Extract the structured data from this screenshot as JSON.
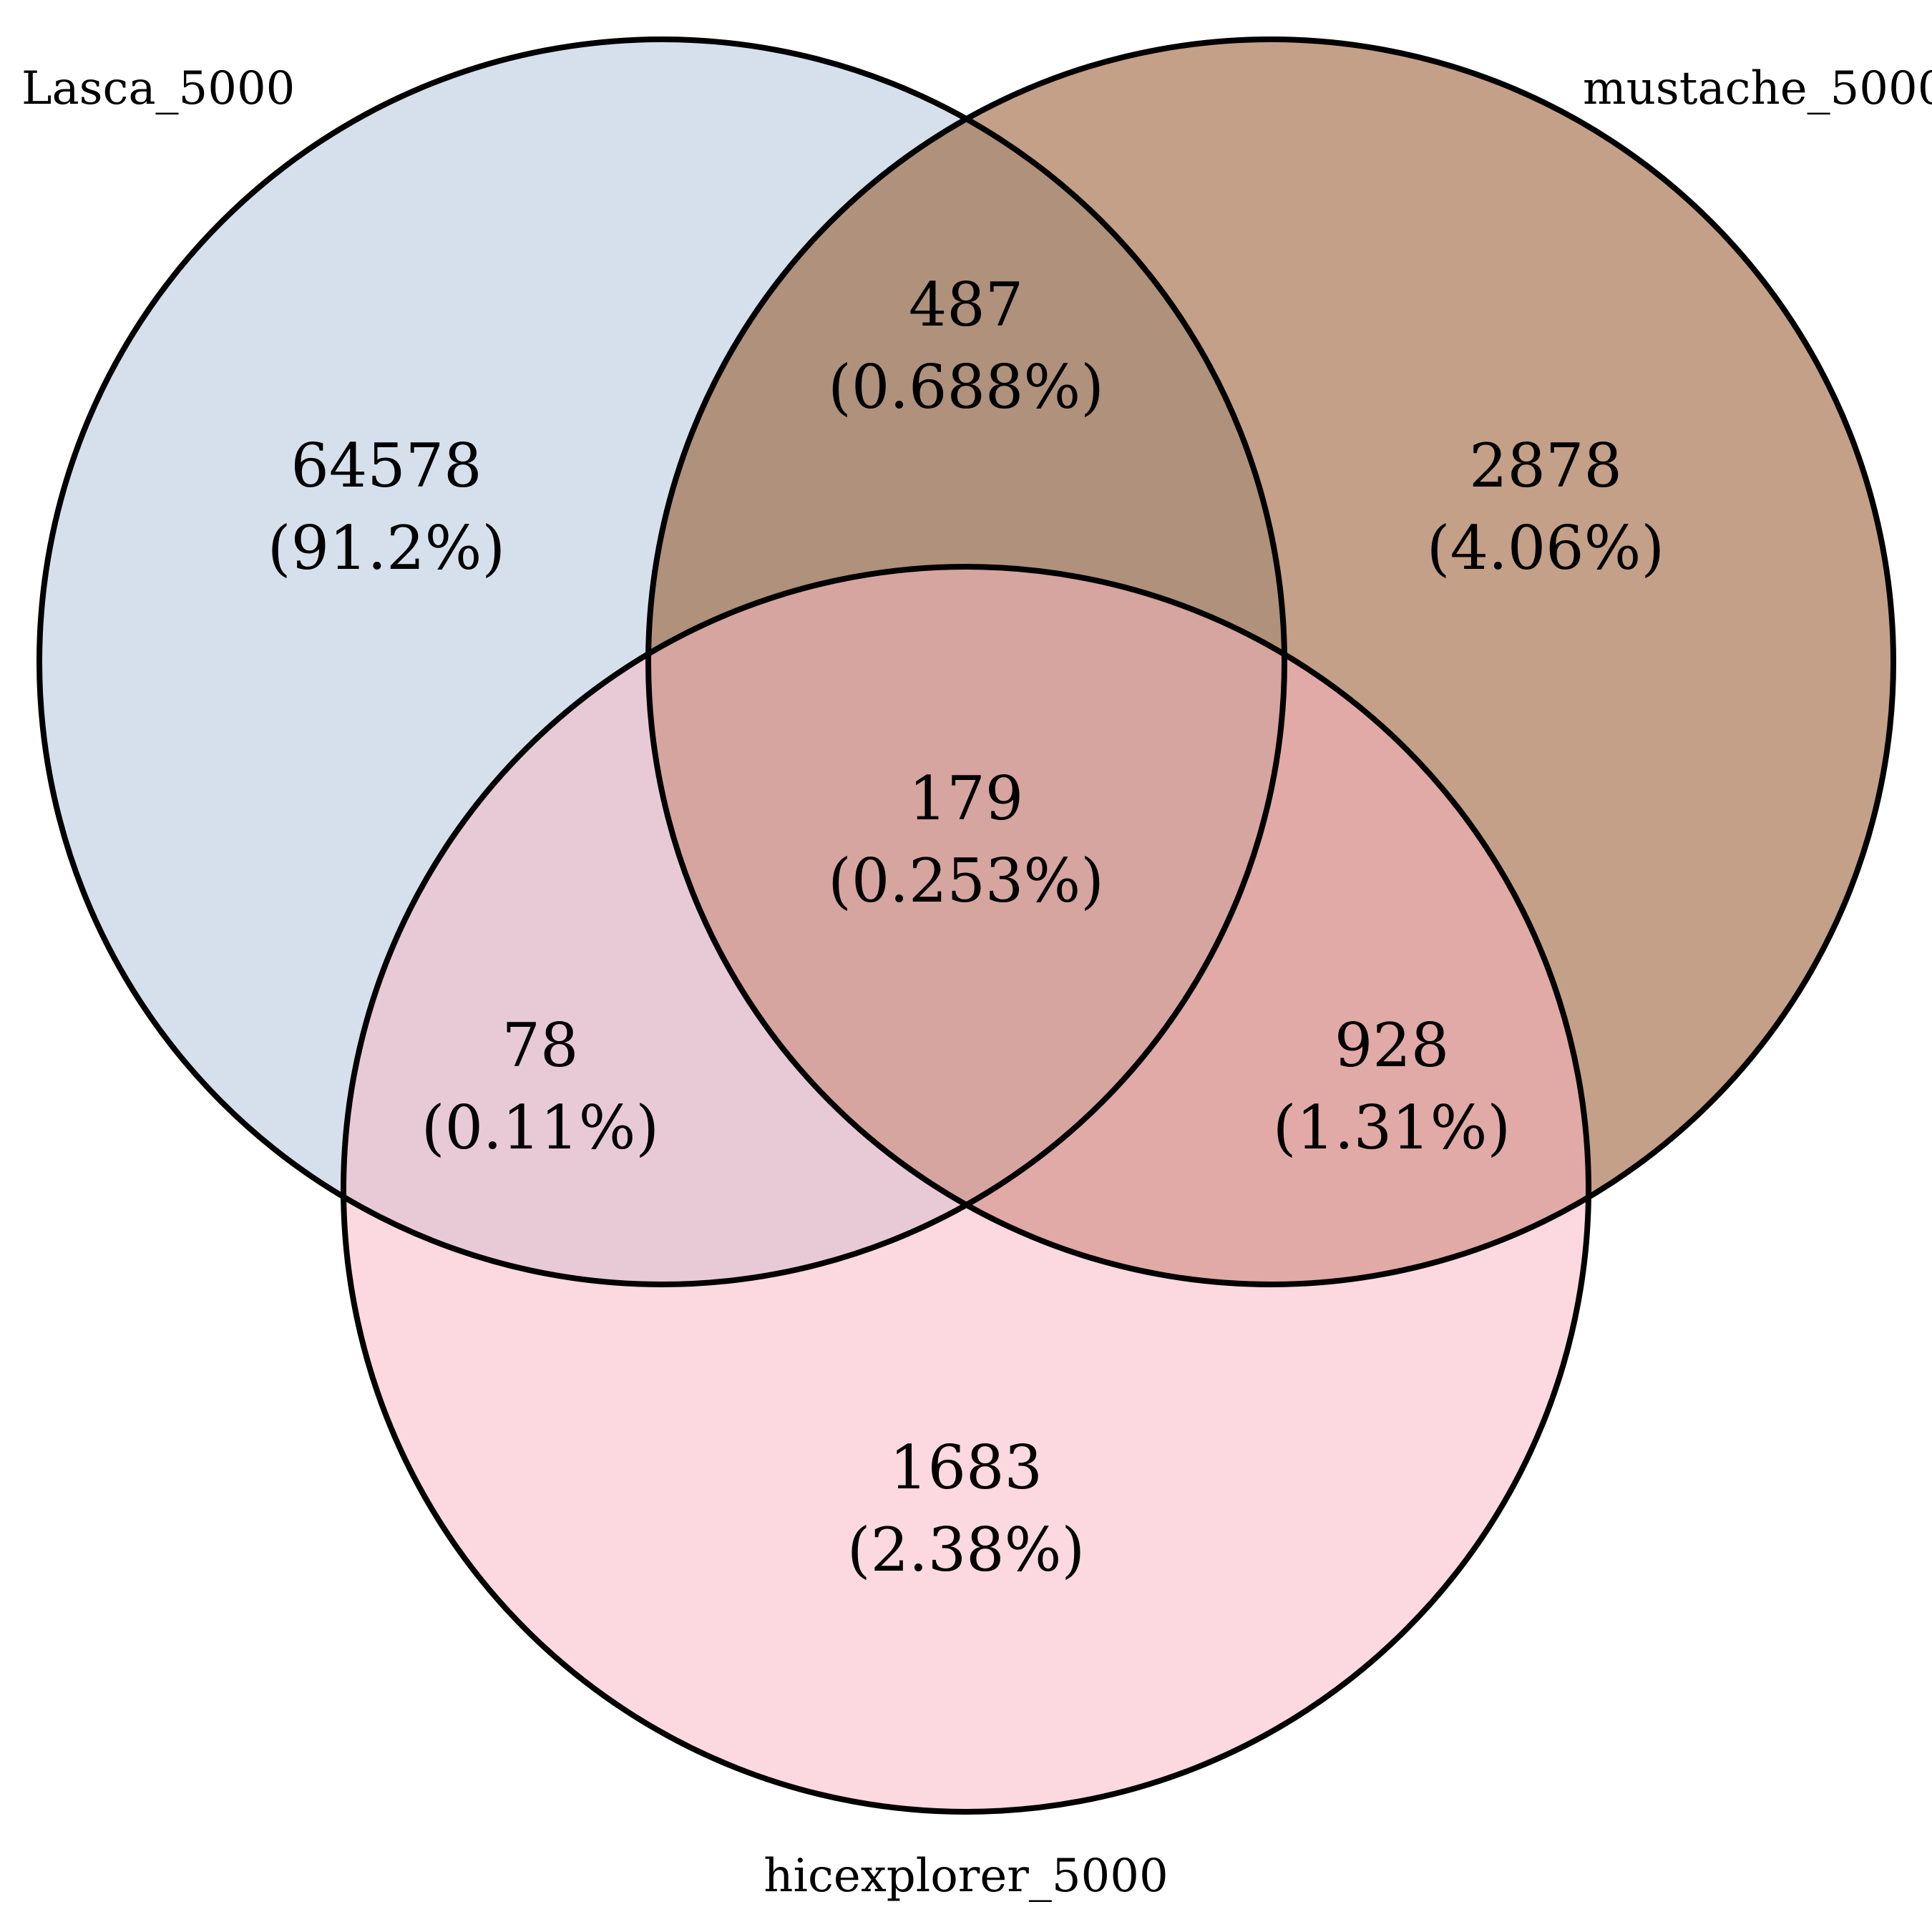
{
  "sets": {
    "A": {
      "label": "Lasca_5000",
      "color": "#d6e0ec"
    },
    "B": {
      "label": "mustache_5000",
      "color": "#c4a088"
    },
    "C": {
      "label": "hicexplorer_5000",
      "color": "#fcd8e0"
    }
  },
  "regions": {
    "A_only": {
      "count": "64578",
      "percent": "(91.2%)",
      "color": "#d6e0ec"
    },
    "B_only": {
      "count": "2878",
      "percent": "(4.06%)",
      "color": "#c4a088"
    },
    "C_only": {
      "count": "1683",
      "percent": "(2.38%)",
      "color": "#fcd8e0"
    },
    "AB": {
      "count": "487",
      "percent": "(0.688%)",
      "color": "#af917c"
    },
    "AC": {
      "count": "78",
      "percent": "(0.11%)",
      "color": "#e8cad6"
    },
    "BC": {
      "count": "928",
      "percent": "(1.31%)",
      "color": "#e1aaa6"
    },
    "ABC": {
      "count": "179",
      "percent": "(0.253%)",
      "color": "#d6a59f"
    }
  },
  "chart_data": {
    "type": "venn",
    "sets": [
      "Lasca_5000",
      "mustache_5000",
      "hicexplorer_5000"
    ],
    "regions": [
      {
        "sets": [
          "Lasca_5000"
        ],
        "value": 64578,
        "percent": 91.2
      },
      {
        "sets": [
          "mustache_5000"
        ],
        "value": 2878,
        "percent": 4.06
      },
      {
        "sets": [
          "hicexplorer_5000"
        ],
        "value": 1683,
        "percent": 2.38
      },
      {
        "sets": [
          "Lasca_5000",
          "mustache_5000"
        ],
        "value": 487,
        "percent": 0.688
      },
      {
        "sets": [
          "Lasca_5000",
          "hicexplorer_5000"
        ],
        "value": 78,
        "percent": 0.11
      },
      {
        "sets": [
          "mustache_5000",
          "hicexplorer_5000"
        ],
        "value": 928,
        "percent": 1.31
      },
      {
        "sets": [
          "Lasca_5000",
          "mustache_5000",
          "hicexplorer_5000"
        ],
        "value": 179,
        "percent": 0.253
      }
    ]
  }
}
